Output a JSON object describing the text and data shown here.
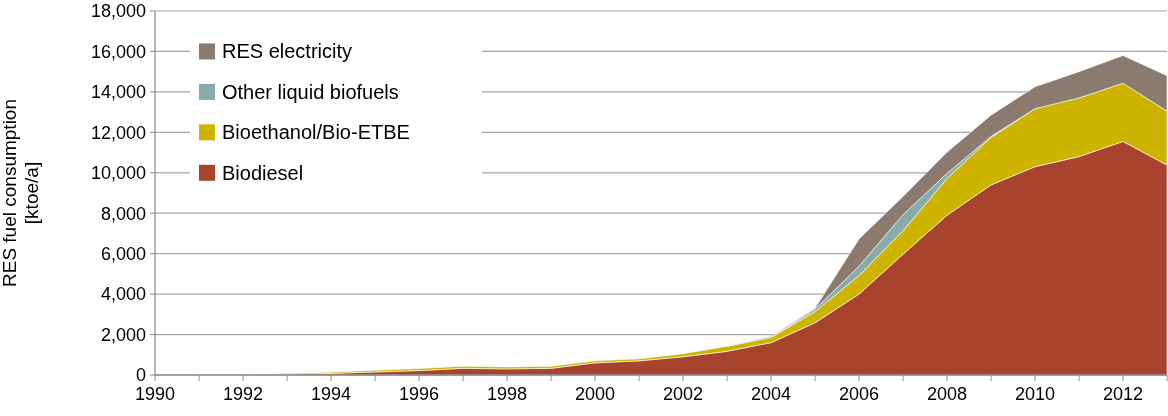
{
  "chart_data": {
    "type": "area",
    "stacked": true,
    "ylabel": "RES fuel consumption\n[ktoe/a]",
    "x": [
      1990,
      1991,
      1992,
      1993,
      1994,
      1995,
      1996,
      1997,
      1998,
      1999,
      2000,
      2001,
      2002,
      2003,
      2004,
      2005,
      2006,
      2007,
      2008,
      2009,
      2010,
      2011,
      2012,
      2013
    ],
    "series": [
      {
        "name": "Biodiesel",
        "color": "#a8432d",
        "values": [
          0,
          0,
          10,
          30,
          80,
          150,
          220,
          330,
          300,
          330,
          600,
          700,
          900,
          1170,
          1600,
          2580,
          4000,
          5970,
          7900,
          9400,
          10300,
          10800,
          11550,
          10380
        ]
      },
      {
        "name": "Bioethanol/Bio-ETBE",
        "color": "#ccb400",
        "values": [
          0,
          0,
          20,
          40,
          60,
          80,
          100,
          100,
          100,
          100,
          100,
          100,
          150,
          250,
          250,
          550,
          920,
          1160,
          1820,
          2350,
          2870,
          2900,
          2880,
          2670
        ]
      },
      {
        "name": "Other liquid biofuels",
        "color": "#8aabab",
        "values": [
          null,
          null,
          null,
          null,
          null,
          null,
          null,
          null,
          null,
          null,
          null,
          null,
          null,
          null,
          0,
          120,
          460,
          800,
          250,
          50,
          0,
          null,
          null,
          null
        ]
      },
      {
        "name": "RES electricity",
        "color": "#8b7b6f",
        "values": [
          null,
          null,
          null,
          null,
          null,
          null,
          null,
          null,
          null,
          null,
          null,
          null,
          null,
          0,
          50,
          50,
          1340,
          900,
          1050,
          1050,
          1080,
          1300,
          1370,
          1750
        ]
      }
    ],
    "xlim": [
      1990,
      2013
    ],
    "xticks": [
      1990,
      {
        "value": 1991,
        "label": null
      },
      1992,
      {
        "value": 1993,
        "label": null
      },
      1994,
      {
        "value": 1995,
        "label": null
      },
      1996,
      {
        "value": 1997,
        "label": null
      },
      1998,
      {
        "value": 1999,
        "label": null
      },
      2000,
      {
        "value": 2001,
        "label": null
      },
      2002,
      {
        "value": 2003,
        "label": null
      },
      2004,
      {
        "value": 2005,
        "label": null
      },
      2006,
      {
        "value": 2007,
        "label": null
      },
      2008,
      {
        "value": 2009,
        "label": null
      },
      2010,
      {
        "value": 2011,
        "label": null
      },
      2012,
      {
        "value": 2013,
        "label": null
      }
    ],
    "ylim": [
      0,
      18000
    ],
    "yticks": [
      {
        "value": 0,
        "label": "0"
      },
      {
        "value": 2000,
        "label": "2,000"
      },
      {
        "value": 4000,
        "label": "4,000"
      },
      {
        "value": 6000,
        "label": "6,000"
      },
      {
        "value": 8000,
        "label": "8,000"
      },
      {
        "value": 10000,
        "label": "10,000"
      },
      {
        "value": 12000,
        "label": "12,000"
      },
      {
        "value": 14000,
        "label": "14,000"
      },
      {
        "value": 16000,
        "label": "16,000"
      },
      {
        "value": 18000,
        "label": "18,000"
      }
    ],
    "grid": "y",
    "legend": "top left"
  }
}
